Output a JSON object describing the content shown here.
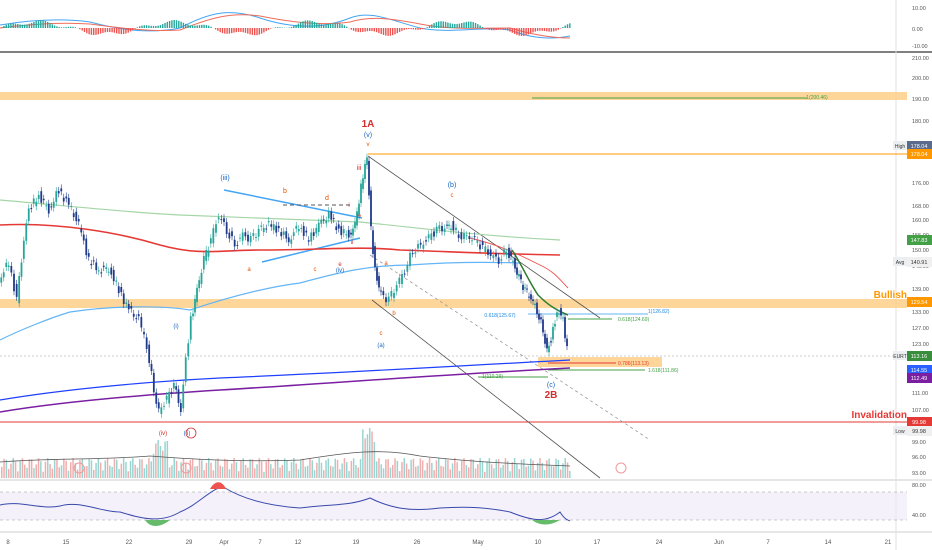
{
  "chart_data": {
    "type": "candlestick",
    "price_axis": {
      "ticks": [
        "184.00",
        "176.00",
        "168.00",
        "160.00",
        "155.00",
        "150.00",
        "145.00",
        "139.00",
        "133.00",
        "127.00",
        "123.00",
        "119.00",
        "111.00",
        "107.00",
        "103.00",
        "99.00",
        "96.00",
        "93.00",
        "90.00"
      ],
      "scale": "log"
    },
    "macd_axis": {
      "ticks": [
        "10.00",
        "0.00",
        "-10.00"
      ]
    },
    "volume_axis": {
      "ticks": [
        "210.00",
        "200.00",
        "190.00",
        "180.00"
      ]
    },
    "rsi_axis": {
      "ticks": [
        "80.00",
        "40.00"
      ]
    },
    "time_axis": {
      "ticks": [
        "8",
        "15",
        "22",
        "29",
        "Apr",
        "7",
        "12",
        "19",
        "26",
        "May",
        "10",
        "17",
        "24",
        "Jun",
        "7",
        "14",
        "21"
      ]
    },
    "price_labels": [
      {
        "name": "High",
        "value": "178.04",
        "color": "#ffffff",
        "bg": "#5b6b8c",
        "text": "#ffffff"
      },
      {
        "name": "",
        "value": "178.04",
        "color": "#ff9800",
        "bg": "#ff9800",
        "text": "#ffffff"
      },
      {
        "name": "",
        "value": "147.83",
        "color": "#43a047",
        "bg": "#43a047",
        "text": "#ffffff"
      },
      {
        "name": "Avg",
        "value": "140.91",
        "color": "#9e9e9e",
        "bg": "#f0f0f0",
        "text": "#333333"
      },
      {
        "name": "",
        "value": "129.54",
        "color": "#ff9800",
        "bg": "#ff9800",
        "text": "#ffffff"
      },
      {
        "name": "EURT",
        "value": "113.16",
        "color": "#2e7d32",
        "bg": "#388e3c",
        "text": "#ffffff"
      },
      {
        "name": "",
        "value": "114.55",
        "color": "#1e40ff",
        "bg": "#2962ff",
        "text": "#ffffff"
      },
      {
        "name": "",
        "value": "112.49",
        "color": "#7b1fa2",
        "bg": "#7b1fa2",
        "text": "#ffffff"
      },
      {
        "name": "",
        "value": "99.98",
        "color": "#e53935",
        "bg": "#e53935",
        "text": "#ffffff"
      },
      {
        "name": "Low",
        "value": "99.98",
        "color": "#5b6b8c",
        "bg": "#f0f0f0",
        "text": "#333333"
      }
    ],
    "zone_labels": {
      "bullish": "Bullish",
      "invalidation": "Invalidation"
    },
    "wave_labels": [
      "1A",
      "(v)",
      "v",
      "iii",
      "iv",
      "ii",
      "i",
      "(iii)",
      "b",
      "d",
      "e",
      "c",
      "a",
      "(iv)",
      "(ii)",
      "(i)",
      "(b)",
      "c",
      "a",
      "b",
      "c",
      "(a)",
      "(c)",
      "2B",
      "(iv)"
    ],
    "fib_labels": [
      "1(200.46)",
      "0.618(125.67)",
      "1(126.82)",
      "0.618(124.69)",
      "0.786(113.13)",
      "1.618(111.86)",
      "1(110.29)"
    ],
    "colors": {
      "ma_red": "#e53935",
      "ma_green_light": "#a5d6a7",
      "ema_blue": "#64b5f6",
      "long_blue": "#1e40ff",
      "long_purple": "#7b1fa2",
      "zone_orange": "#ffcc80",
      "orange_line": "#ff9800",
      "candle_up": "#26a69a",
      "candle_down": "#1e3a8a",
      "rsi": "#3949ab",
      "invalid": "#e53935"
    }
  }
}
